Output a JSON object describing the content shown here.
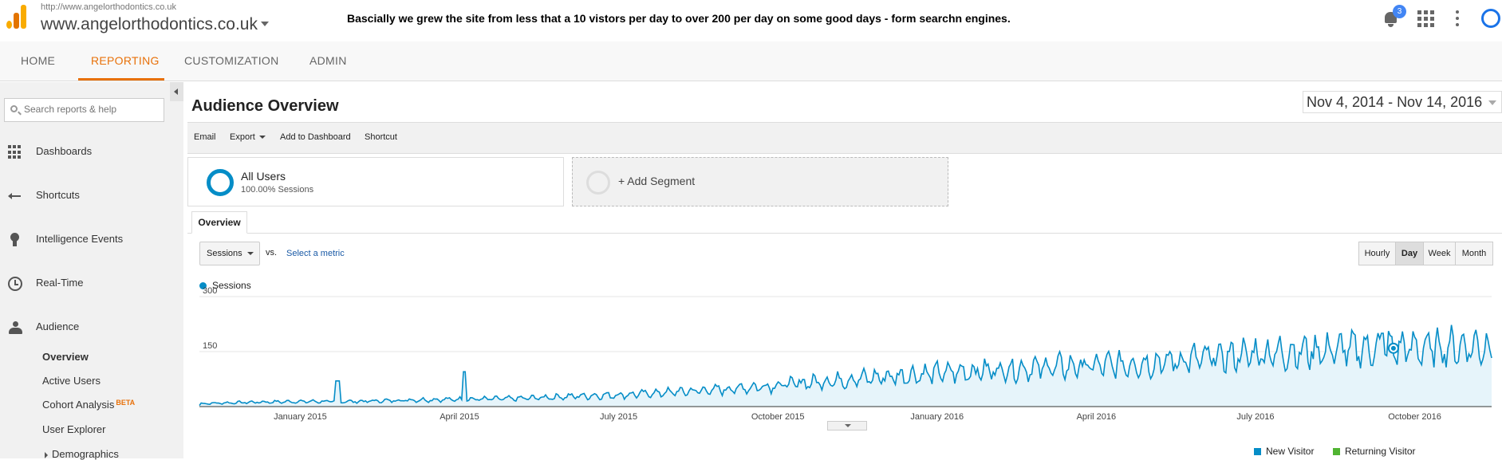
{
  "header": {
    "site_url": "http://www.angelorthodontics.co.uk",
    "site_name": "www.angelorthodontics.co.uk",
    "annotation": "Bascially we grew the site from less that a 10 vistors per day to over 200 per day on some good days - form searchn engines.",
    "notification_count": "3",
    "icons": [
      "analytics-logo-icon",
      "bell-icon",
      "apps-grid-icon",
      "more-vert-icon",
      "account-icon"
    ]
  },
  "nav": {
    "tabs": [
      "HOME",
      "REPORTING",
      "CUSTOMIZATION",
      "ADMIN"
    ],
    "active": "REPORTING",
    "accent_color": "#e8710a"
  },
  "sidebar": {
    "search_placeholder": "Search reports & help",
    "items": [
      {
        "label": "Dashboards",
        "icon": "dashboards-icon"
      },
      {
        "label": "Shortcuts",
        "icon": "shortcuts-icon"
      },
      {
        "label": "Intelligence Events",
        "icon": "intelligence-bulb-icon"
      },
      {
        "label": "Real-Time",
        "icon": "clock-icon"
      },
      {
        "label": "Audience",
        "icon": "audience-people-icon"
      }
    ],
    "audience_sub": [
      "Overview",
      "Active Users",
      "Cohort Analysis",
      "User Explorer",
      "Demographics"
    ],
    "beta_tag": "BETA"
  },
  "main": {
    "title": "Audience Overview",
    "date_range": "Nov 4, 2014 - Nov 14, 2016",
    "toolbar": {
      "email": "Email",
      "export": "Export",
      "add_dashboard": "Add to Dashboard",
      "shortcut": "Shortcut"
    },
    "segment": {
      "name": "All Users",
      "sub": "100.00% Sessions",
      "add": "+ Add Segment"
    },
    "overview_tab": "Overview",
    "metric": "Sessions",
    "vs": "vs.",
    "select_metric": "Select a metric",
    "granularity": [
      "Hourly",
      "Day",
      "Week",
      "Month"
    ],
    "granularity_active": "Day",
    "pie_legend": [
      {
        "label": "New Visitor",
        "color": "#058dc7"
      },
      {
        "label": "Returning Visitor",
        "color": "#50b432"
      }
    ]
  },
  "chart_data": {
    "type": "area",
    "series_name": "Sessions",
    "color": "#058dc7",
    "fill": "#e6f4fa",
    "y_ticks": [
      300,
      150
    ],
    "ylim": [
      0,
      300
    ],
    "x_tick_labels": [
      "January 2015",
      "April 2015",
      "July 2015",
      "October 2015",
      "January 2016",
      "April 2016",
      "July 2016",
      "October 2016"
    ],
    "x_tick_months_from_start": [
      1.9,
      4.9,
      7.9,
      10.9,
      13.9,
      16.9,
      19.9,
      22.9
    ],
    "total_months": 24.35,
    "monthly_sessions": [
      [
        0,
        8
      ],
      [
        1,
        12
      ],
      [
        2,
        14
      ],
      [
        3,
        14
      ],
      [
        4,
        18
      ],
      [
        5,
        20
      ],
      [
        6,
        22
      ],
      [
        7,
        28
      ],
      [
        8,
        32
      ],
      [
        9,
        40
      ],
      [
        10,
        48
      ],
      [
        11,
        60
      ],
      [
        12,
        72
      ],
      [
        13,
        82
      ],
      [
        14,
        92
      ],
      [
        15,
        100
      ],
      [
        16,
        108
      ],
      [
        17,
        112
      ],
      [
        18,
        120
      ],
      [
        19,
        132
      ],
      [
        20,
        145
      ],
      [
        21,
        152
      ],
      [
        22,
        158
      ],
      [
        23,
        160
      ],
      [
        24.35,
        165
      ]
    ],
    "spikes": [
      [
        2.6,
        70
      ],
      [
        5.0,
        95
      ],
      [
        22.3,
        200
      ]
    ],
    "highlight_point_month": 22.5
  }
}
